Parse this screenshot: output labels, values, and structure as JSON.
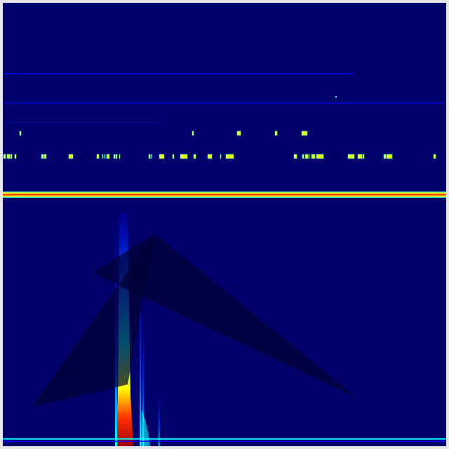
{
  "image": {
    "kind": "spectrogram",
    "colormap": "jet",
    "colors": {
      "background": "#00006a",
      "frame": "#e6e6e6",
      "overlay_shape": "#000033",
      "low": "#0000ff",
      "mid": "#00ffff",
      "high_mid": "#ffff00",
      "high": "#ff0000",
      "peak": "#800000"
    },
    "overlay_shapes": [
      "triangle",
      "triangle"
    ]
  }
}
